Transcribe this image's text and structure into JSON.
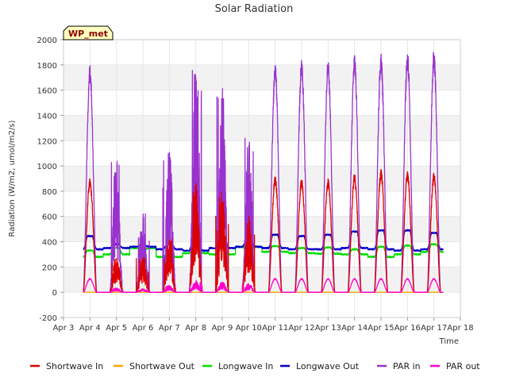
{
  "chart_data": {
    "type": "line",
    "title": "Solar Radiation",
    "xlabel": "Time",
    "ylabel": "Radiation (W/m2, umol/m2/s)",
    "badge": "WP_met",
    "xlim": [
      3,
      18
    ],
    "ylim": [
      -200,
      2000
    ],
    "x_ticks": [
      3,
      4,
      5,
      6,
      7,
      8,
      9,
      10,
      11,
      12,
      13,
      14,
      15,
      16,
      17,
      18
    ],
    "x_tick_labels": [
      "Apr 3",
      "Apr 4",
      "Apr 5",
      "Apr 6",
      "Apr 7",
      "Apr 8",
      "Apr 9",
      "Apr 10",
      "Apr 11",
      "Apr 12",
      "Apr 13",
      "Apr 14",
      "Apr 15",
      "Apr 16",
      "Apr 17",
      "Apr 18"
    ],
    "y_ticks": [
      -200,
      0,
      200,
      400,
      600,
      800,
      1000,
      1200,
      1400,
      1600,
      1800,
      2000
    ],
    "background_bands": true,
    "legend_position": "bottom",
    "day_peaks_x": [
      4,
      5,
      6,
      7,
      8,
      9,
      10,
      11,
      12,
      13,
      14,
      15,
      16,
      17
    ],
    "series": [
      {
        "name": "Shortwave In",
        "color": "#dd0000",
        "peaks": [
          910,
          300,
          280,
          450,
          880,
          830,
          620,
          920,
          900,
          900,
          940,
          975,
          960,
          950
        ]
      },
      {
        "name": "Shortwave Out",
        "color": "#ffa500",
        "peaks": [
          0,
          0,
          0,
          0,
          0,
          0,
          0,
          0,
          0,
          0,
          0,
          0,
          0,
          0
        ]
      },
      {
        "name": "Longwave In",
        "color": "#00dd00",
        "night": [
          280,
          300,
          350,
          280,
          310,
          300,
          360,
          320,
          310,
          305,
          300,
          280,
          300,
          320
        ],
        "day": [
          330,
          350,
          340,
          300,
          360,
          350,
          340,
          365,
          350,
          355,
          340,
          360,
          370,
          380
        ]
      },
      {
        "name": "Longwave Out",
        "color": "#0000cc",
        "night": [
          340,
          350,
          360,
          340,
          330,
          350,
          360,
          350,
          340,
          340,
          350,
          340,
          330,
          340
        ],
        "day": [
          445,
          380,
          370,
          380,
          430,
          430,
          410,
          455,
          445,
          455,
          480,
          490,
          490,
          470
        ]
      },
      {
        "name": "PAR in",
        "color": "#9932cc",
        "peaks": [
          1800,
          1100,
          640,
          1150,
          1760,
          1670,
          1240,
          1815,
          1850,
          1850,
          1890,
          1905,
          1910,
          1920
        ]
      },
      {
        "name": "PAR out",
        "color": "#ff00cc",
        "peaks": [
          110,
          35,
          30,
          55,
          95,
          85,
          70,
          110,
          110,
          110,
          110,
          110,
          110,
          110
        ]
      }
    ]
  }
}
